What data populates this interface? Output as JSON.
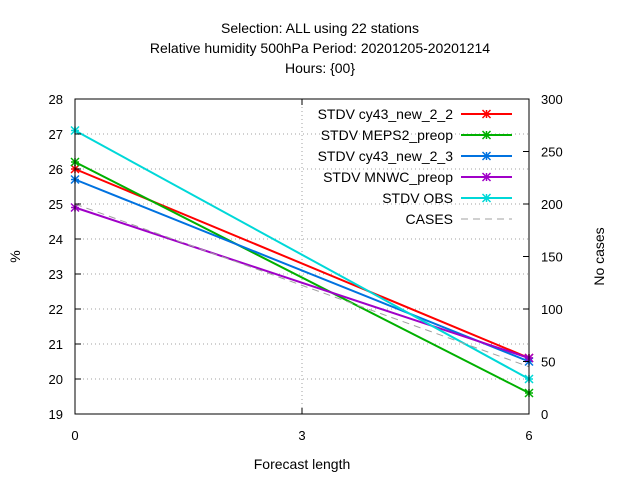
{
  "chart_data": {
    "type": "line",
    "title_lines": [
      "Selection: ALL using    22 stations",
      "Relative humidity 500hPa   Period: 20201205-20201214",
      "Hours: {00}"
    ],
    "xlabel": "Forecast length",
    "ylabel": "%",
    "y2label": "No cases",
    "x": [
      0,
      6
    ],
    "x_ticks": [
      "0",
      "3",
      "6"
    ],
    "xlim": [
      0,
      6
    ],
    "ylim": [
      19,
      28
    ],
    "y_ticks": [
      "19",
      "20",
      "21",
      "22",
      "23",
      "24",
      "25",
      "26",
      "27",
      "28"
    ],
    "y2lim": [
      0,
      300
    ],
    "y2_ticks": [
      "0",
      "50",
      "100",
      "150",
      "200",
      "250",
      "300"
    ],
    "grid": true,
    "legend_position": "top-right",
    "series": [
      {
        "name": "STDV cy43_new_2_2",
        "color": "#ff0000",
        "values": [
          26.0,
          20.6
        ],
        "axis": "y1",
        "marker": "star"
      },
      {
        "name": "STDV MEPS2_preop",
        "color": "#00b000",
        "values": [
          26.2,
          19.6
        ],
        "axis": "y1",
        "marker": "star"
      },
      {
        "name": "STDV cy43_new_2_3",
        "color": "#0072e0",
        "values": [
          25.7,
          20.5
        ],
        "axis": "y1",
        "marker": "star"
      },
      {
        "name": "STDV MNWC_preop",
        "color": "#a000c8",
        "values": [
          24.9,
          20.6
        ],
        "axis": "y1",
        "marker": "star"
      },
      {
        "name": "STDV OBS",
        "color": "#00d8d8",
        "values": [
          27.1,
          20.0
        ],
        "axis": "y1",
        "marker": "star"
      },
      {
        "name": "CASES",
        "color": "#a0a0a0",
        "values": [
          200,
          45
        ],
        "axis": "y2",
        "dashed": true
      }
    ]
  }
}
